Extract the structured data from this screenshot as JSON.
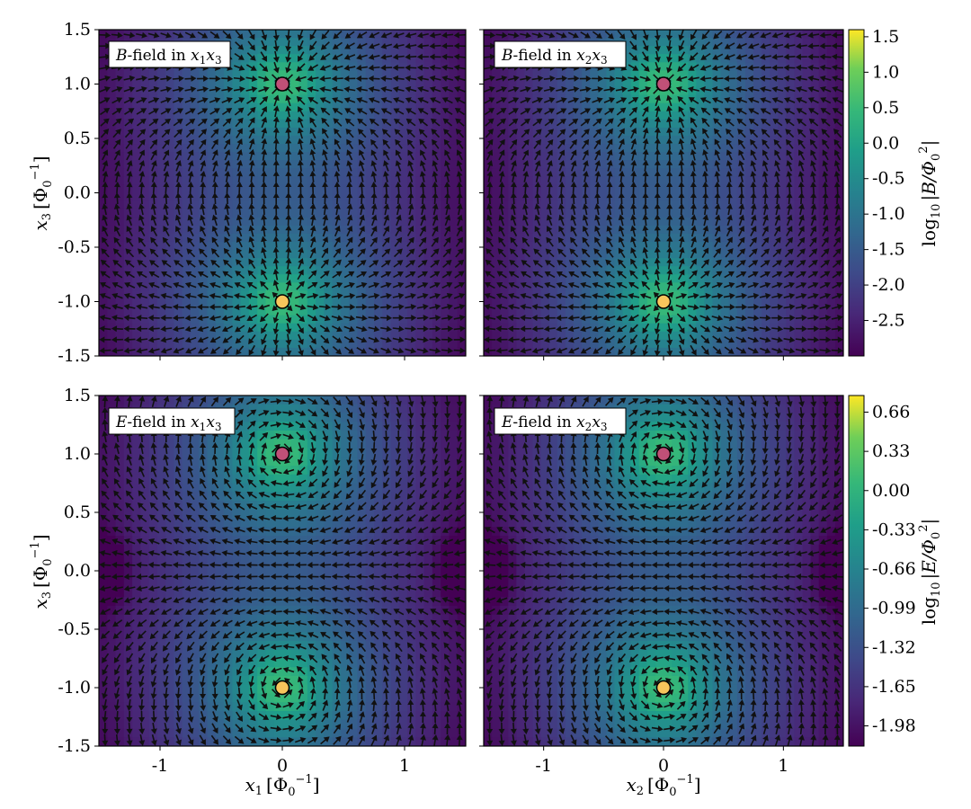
{
  "chart_data": [
    {
      "type": "heatmap",
      "title": "B-field in x1x3",
      "field": "B",
      "xlabel": "x1 [Φ0^-1]",
      "ylabel": "x3 [Φ0^-1]",
      "xlim": [
        -1.5,
        1.5
      ],
      "ylim": [
        -1.5,
        1.5
      ],
      "x_ticks": [
        -1,
        0,
        1
      ],
      "y_ticks": [
        1.5,
        1.0,
        0.5,
        0.0,
        -0.5,
        -1.0,
        -1.5
      ],
      "markers": [
        {
          "x": 0,
          "y": 1,
          "color": "#c05077"
        },
        {
          "x": 0,
          "y": -1,
          "color": "#f7c55c"
        }
      ],
      "colorbar": {
        "label": "log10 |B/Φ0^2|",
        "range": [
          -3.0,
          1.6
        ],
        "ticks": [
          1.5,
          1.0,
          0.5,
          0.0,
          -0.5,
          -1.0,
          -1.5,
          -2.0,
          -2.5
        ]
      }
    },
    {
      "type": "heatmap",
      "title": "B-field in x2x3",
      "field": "B",
      "xlabel": "x2 [Φ0^-1]",
      "ylabel": "",
      "xlim": [
        -1.5,
        1.5
      ],
      "ylim": [
        -1.5,
        1.5
      ],
      "x_ticks": [
        -1,
        0,
        1
      ],
      "markers": [
        {
          "x": 0,
          "y": 1,
          "color": "#c05077"
        },
        {
          "x": 0,
          "y": -1,
          "color": "#f7c55c"
        }
      ]
    },
    {
      "type": "heatmap",
      "title": "E-field in x1x3",
      "field": "E",
      "xlabel": "x1 [Φ0^-1]",
      "ylabel": "x3 [Φ0^-1]",
      "xlim": [
        -1.5,
        1.5
      ],
      "ylim": [
        -1.5,
        1.5
      ],
      "x_ticks": [
        -1,
        0,
        1
      ],
      "y_ticks": [
        1.5,
        1.0,
        0.5,
        0.0,
        -0.5,
        -1.0,
        -1.5
      ],
      "markers": [
        {
          "x": 0,
          "y": 1,
          "color": "#c05077"
        },
        {
          "x": 0,
          "y": -1,
          "color": "#f7c55c"
        }
      ],
      "colorbar": {
        "label": "log10 |E/Φ0^2|",
        "range": [
          -2.15,
          0.8
        ],
        "ticks": [
          0.66,
          0.33,
          0.0,
          -0.33,
          -0.66,
          -0.99,
          -1.32,
          -1.65,
          -1.98
        ]
      }
    },
    {
      "type": "heatmap",
      "title": "E-field in x2x3",
      "field": "E",
      "xlabel": "x2 [Φ0^-1]",
      "ylabel": "",
      "xlim": [
        -1.5,
        1.5
      ],
      "ylim": [
        -1.5,
        1.5
      ],
      "x_ticks": [
        -1,
        0,
        1
      ],
      "markers": [
        {
          "x": 0,
          "y": 1,
          "color": "#c05077"
        },
        {
          "x": 0,
          "y": -1,
          "color": "#f7c55c"
        }
      ]
    }
  ],
  "labels": {
    "panel_prefix_B": "B",
    "panel_prefix_E": "E",
    "panel_mid": "-field in ",
    "x1": "x",
    "x2": "x",
    "sub1": "1",
    "sub2": "2",
    "sub3": "3",
    "unit_open": "[Φ",
    "unit_sub0": "0",
    "unit_sup": "−1",
    "unit_close": "]",
    "cb_log": "log",
    "cb_log_sub": "10",
    "cb_B": "|B/Φ",
    "cb_E": "|E/Φ",
    "cb_sup2": "2",
    "cb_close": "|",
    "ytick_labels": [
      "1.5",
      "1.0",
      "0.5",
      "0.0",
      "-0.5",
      "-1.0",
      "-1.5"
    ],
    "xtick_labels": [
      "-1",
      "0",
      "1"
    ],
    "cbB_tick_labels": [
      "1.5",
      "1.0",
      "0.5",
      "0.0",
      "-0.5",
      "-1.0",
      "-1.5",
      "-2.0",
      "-2.5"
    ],
    "cbE_tick_labels": [
      "0.66",
      "0.33",
      "0.00",
      "-0.33",
      "-0.66",
      "-0.99",
      "-1.32",
      "-1.65",
      "-1.98"
    ]
  },
  "colors": {
    "arrow": "#111111",
    "marker_top": "#c05077",
    "marker_bottom": "#f7c55c",
    "colormap": "viridis"
  }
}
